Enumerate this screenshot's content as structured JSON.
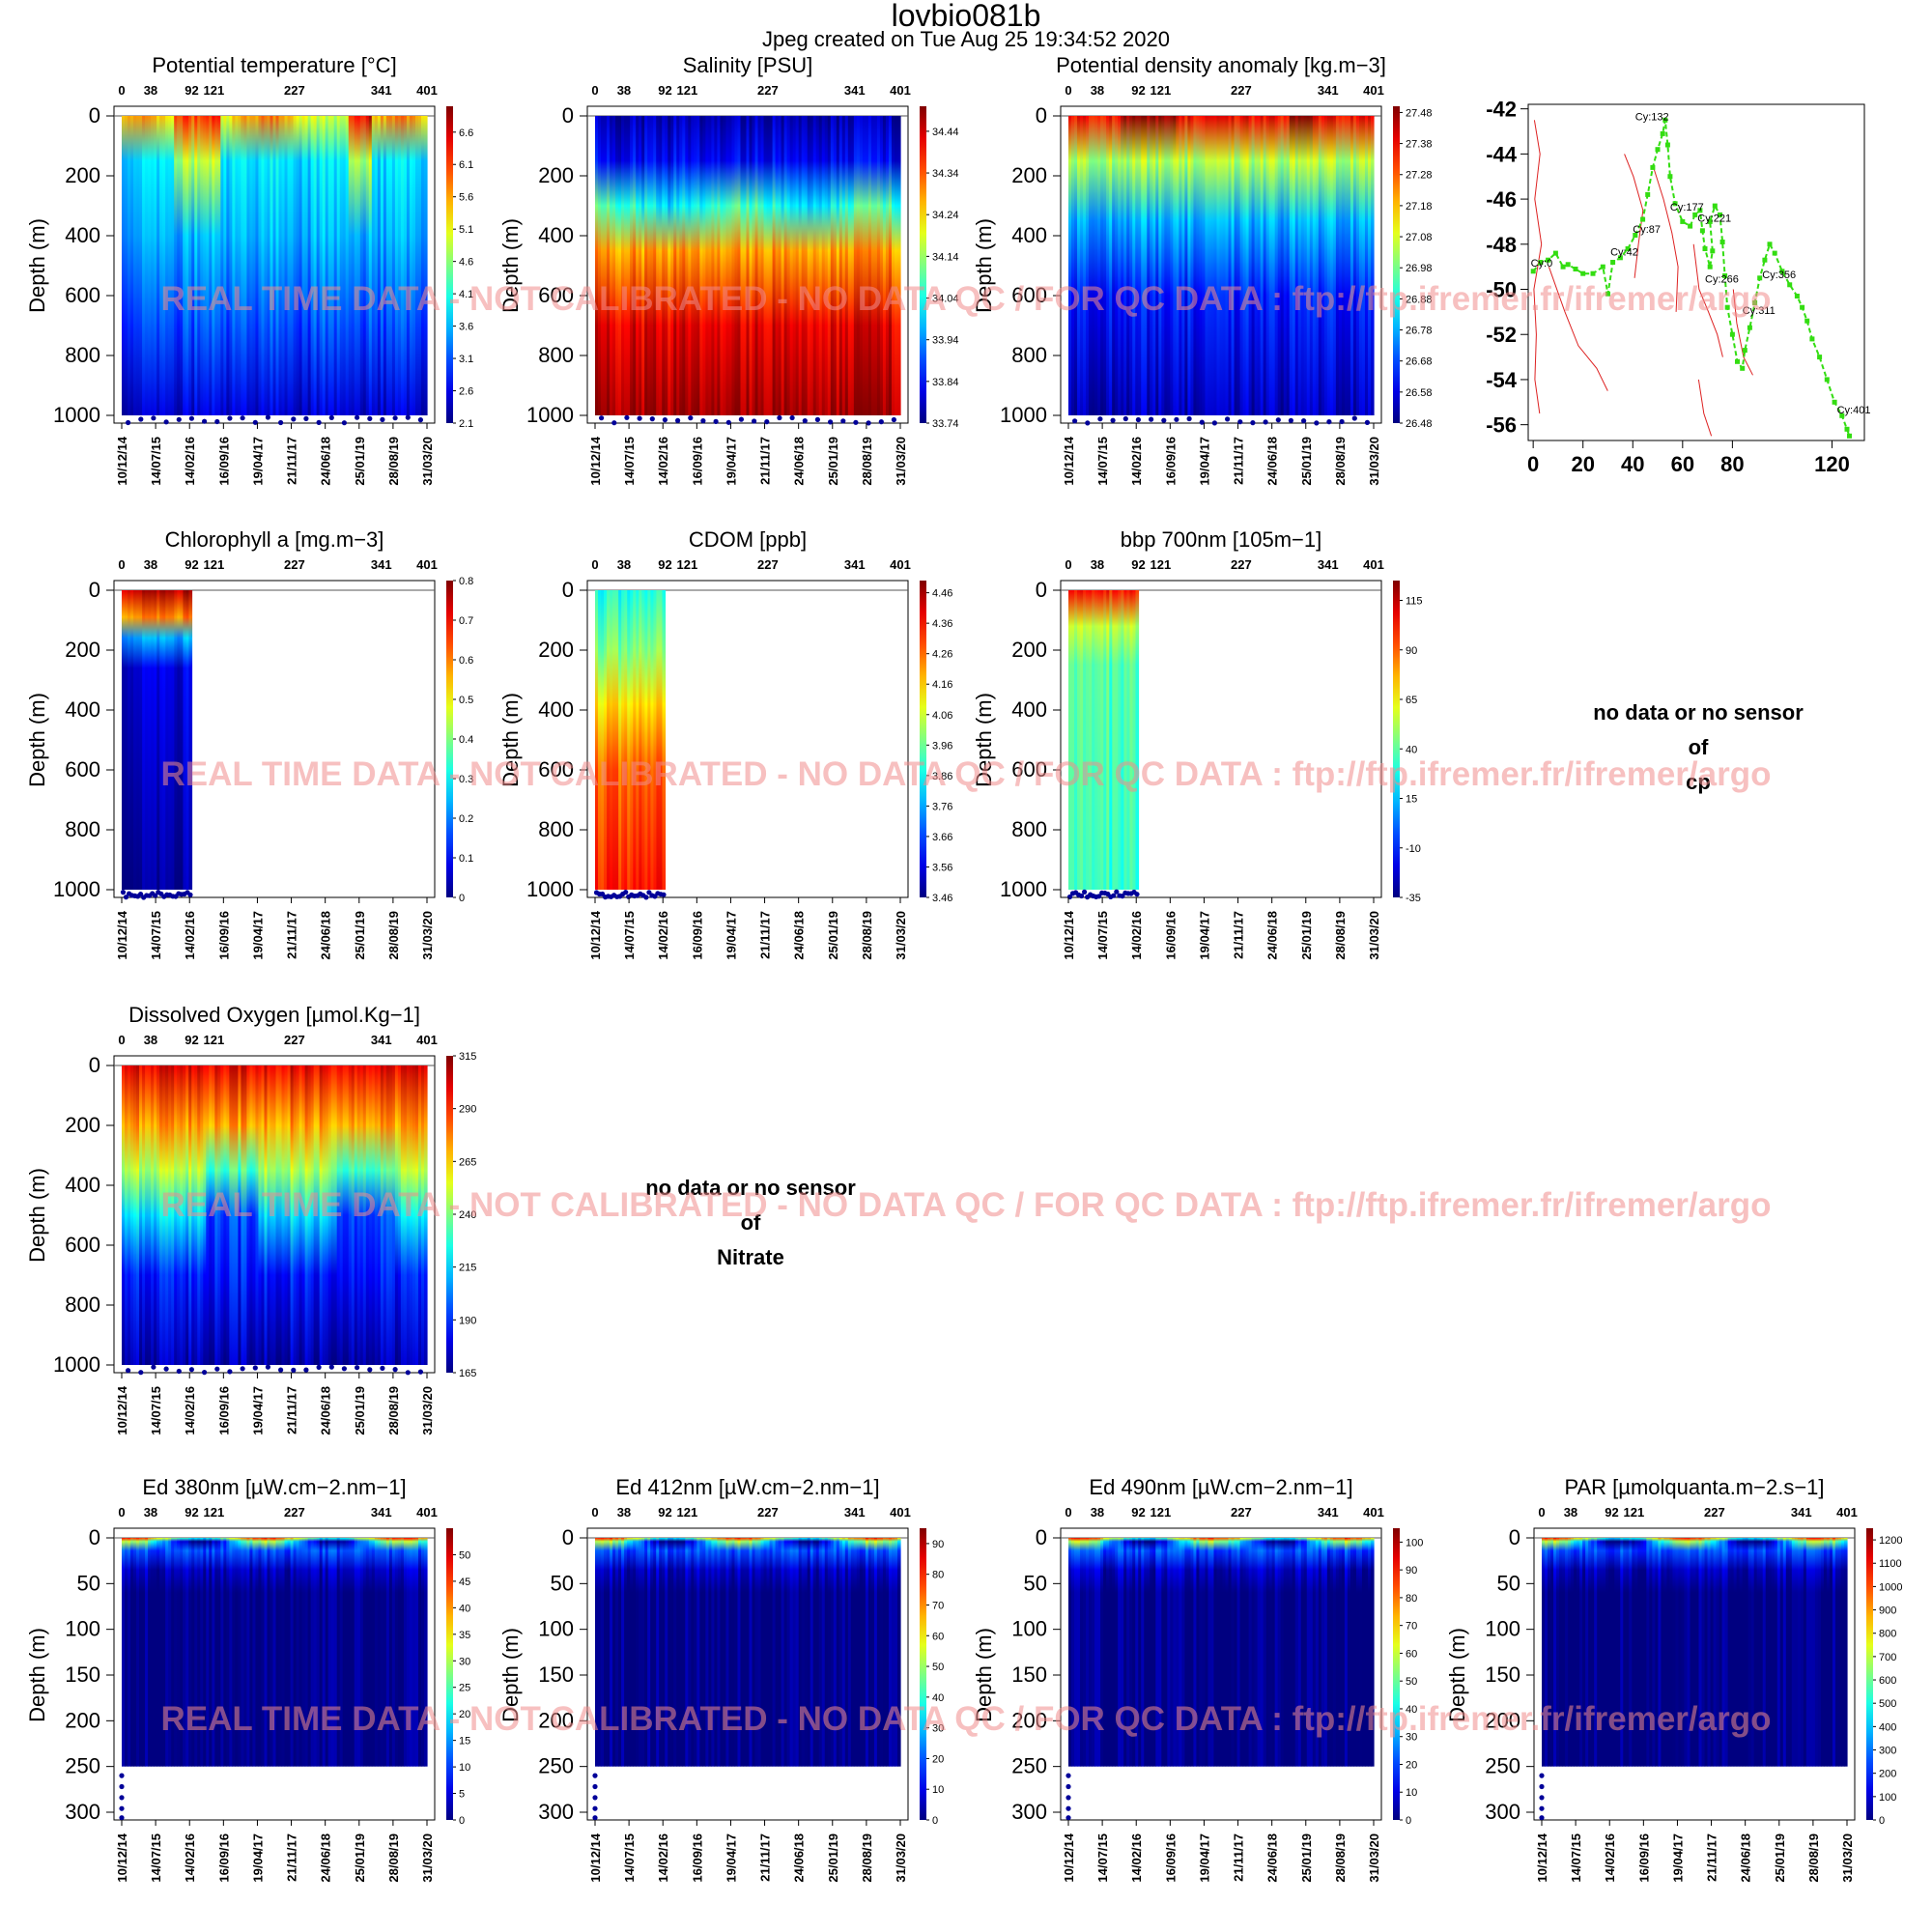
{
  "title": "lovbio081b",
  "subtitle": "Jpeg created on  Tue Aug 25 19:34:52 2020",
  "watermark": "REAL TIME DATA - NOT CALIBRATED - NO DATA QC   /  FOR QC DATA : ftp://ftp.ifremer.fr/ifremer/argo",
  "colors": {
    "colormap": "jet",
    "map_track": "#33dd11",
    "map_contour": "#dd2222",
    "profile_bottom_dot": "#000099"
  },
  "no_data": {
    "cp": [
      "no data or no sensor",
      "of",
      "cp"
    ],
    "nitrate": [
      "no data or no sensor",
      "of",
      "Nitrate"
    ]
  },
  "shared_axes": {
    "cycle_ticks": [
      0,
      38,
      92,
      121,
      227,
      341,
      401
    ],
    "date_ticks": [
      "10/12/14",
      "14/07/15",
      "14/02/16",
      "16/09/16",
      "19/04/17",
      "21/11/17",
      "24/06/18",
      "25/01/19",
      "28/08/19",
      "31/03/20"
    ],
    "ylabel": "Depth (m)"
  },
  "chart_data": [
    {
      "id": "temp",
      "type": "heatmap",
      "title": "Potential temperature [°C]",
      "ylabel": "Depth (m)",
      "ylim": [
        1000,
        0
      ],
      "yticks": [
        0,
        200,
        400,
        600,
        800,
        1000
      ],
      "cycle_coverage": [
        0,
        401
      ],
      "colorbar": {
        "min": 2.1,
        "max": 7.0,
        "ticks": [
          "6.6",
          "6.1",
          "5.6",
          "5.1",
          "4.6",
          "4.1",
          "3.6",
          "3.1",
          "2.6",
          "2.1"
        ]
      }
    },
    {
      "id": "sal",
      "type": "heatmap",
      "title": "Salinity [PSU]",
      "ylabel": "Depth (m)",
      "ylim": [
        1000,
        0
      ],
      "yticks": [
        0,
        200,
        400,
        600,
        800,
        1000
      ],
      "cycle_coverage": [
        0,
        401
      ],
      "colorbar": {
        "min": 33.74,
        "max": 34.5,
        "ticks": [
          "34.44",
          "34.34",
          "34.24",
          "34.14",
          "34.04",
          "33.94",
          "33.84",
          "33.74"
        ]
      }
    },
    {
      "id": "dens",
      "type": "heatmap",
      "title": "Potential density anomaly [kg.m−3]",
      "ylabel": "Depth (m)",
      "ylim": [
        1000,
        0
      ],
      "yticks": [
        0,
        200,
        400,
        600,
        800,
        1000
      ],
      "cycle_coverage": [
        0,
        401
      ],
      "colorbar": {
        "min": 26.48,
        "max": 27.5,
        "ticks": [
          "27.48",
          "27.38",
          "27.28",
          "27.18",
          "27.08",
          "26.98",
          "26.88",
          "26.78",
          "26.68",
          "26.58",
          "26.48"
        ]
      }
    },
    {
      "id": "map",
      "type": "scatter",
      "title": "",
      "xlim": [
        -2,
        133
      ],
      "ylim": [
        -56.7,
        -41.8
      ],
      "xticks": [
        0,
        20,
        40,
        60,
        80,
        120
      ],
      "yticks": [
        -42,
        -44,
        -46,
        -48,
        -50,
        -52,
        -54,
        -56
      ],
      "track_labels": [
        {
          "label": "Cy:0",
          "x": -1,
          "y": -49.0
        },
        {
          "label": "Cy:42",
          "x": 31,
          "y": -48.5
        },
        {
          "label": "Cy:87",
          "x": 40,
          "y": -47.5
        },
        {
          "label": "Cy:132",
          "x": 41,
          "y": -42.5
        },
        {
          "label": "Cy:177",
          "x": 55,
          "y": -46.5
        },
        {
          "label": "Cy:221",
          "x": 66,
          "y": -47.0
        },
        {
          "label": "Cy:266",
          "x": 69,
          "y": -49.7
        },
        {
          "label": "Cy:311",
          "x": 84,
          "y": -51.1
        },
        {
          "label": "Cy:356",
          "x": 92,
          "y": -49.5
        },
        {
          "label": "Cy:401",
          "x": 122,
          "y": -55.5
        }
      ],
      "track": [
        [
          0,
          -49.2
        ],
        [
          3,
          -48.8
        ],
        [
          6,
          -48.7
        ],
        [
          9,
          -48.4
        ],
        [
          12,
          -49.0
        ],
        [
          14,
          -48.9
        ],
        [
          17,
          -49.1
        ],
        [
          20,
          -49.3
        ],
        [
          24,
          -49.3
        ],
        [
          28,
          -49.0
        ],
        [
          30,
          -50.2
        ],
        [
          32,
          -48.8
        ],
        [
          35,
          -48.6
        ],
        [
          38,
          -48.2
        ],
        [
          41,
          -47.6
        ],
        [
          44,
          -46.9
        ],
        [
          46,
          -45.8
        ],
        [
          48,
          -44.6
        ],
        [
          50,
          -43.8
        ],
        [
          52,
          -43.1
        ],
        [
          53,
          -42.5
        ],
        [
          54,
          -43.6
        ],
        [
          55,
          -45.0
        ],
        [
          57,
          -46.2
        ],
        [
          60,
          -47.0
        ],
        [
          63,
          -47.2
        ],
        [
          65,
          -46.7
        ],
        [
          67,
          -46.5
        ],
        [
          68,
          -47.4
        ],
        [
          69,
          -48.2
        ],
        [
          71,
          -49.0
        ],
        [
          72,
          -48.3
        ],
        [
          71,
          -47.0
        ],
        [
          73,
          -46.3
        ],
        [
          75,
          -46.7
        ],
        [
          76,
          -47.9
        ],
        [
          77,
          -49.4
        ],
        [
          78,
          -50.8
        ],
        [
          80,
          -52.0
        ],
        [
          82,
          -53.2
        ],
        [
          84,
          -53.5
        ],
        [
          85,
          -52.7
        ],
        [
          87,
          -51.7
        ],
        [
          89,
          -50.6
        ],
        [
          91,
          -49.5
        ],
        [
          93,
          -48.7
        ],
        [
          95,
          -48.0
        ],
        [
          97,
          -48.4
        ],
        [
          100,
          -49.2
        ],
        [
          103,
          -49.8
        ],
        [
          106,
          -50.3
        ],
        [
          108,
          -50.8
        ],
        [
          110,
          -51.4
        ],
        [
          112,
          -52.2
        ],
        [
          115,
          -53.0
        ],
        [
          118,
          -54.0
        ],
        [
          121,
          -55.0
        ],
        [
          124,
          -55.6
        ],
        [
          126,
          -56.2
        ],
        [
          127,
          -56.5
        ]
      ]
    },
    {
      "id": "chla",
      "type": "heatmap",
      "title": "Chlorophyll a [mg.m−3]",
      "ylabel": "Depth (m)",
      "ylim": [
        1000,
        0
      ],
      "yticks": [
        0,
        200,
        400,
        600,
        800,
        1000
      ],
      "cycle_coverage": [
        0,
        92
      ],
      "colorbar": {
        "min": 0,
        "max": 0.8,
        "ticks": [
          "0.8",
          "0.7",
          "0.6",
          "0.5",
          "0.4",
          "0.3",
          "0.2",
          "0.1",
          "0"
        ]
      }
    },
    {
      "id": "cdom",
      "type": "heatmap",
      "title": "CDOM  [ppb]",
      "ylabel": "Depth (m)",
      "ylim": [
        1000,
        0
      ],
      "yticks": [
        0,
        200,
        400,
        600,
        800,
        1000
      ],
      "cycle_coverage": [
        0,
        92
      ],
      "colorbar": {
        "min": 3.46,
        "max": 4.5,
        "ticks": [
          "4.46",
          "4.36",
          "4.26",
          "4.16",
          "4.06",
          "3.96",
          "3.86",
          "3.76",
          "3.66",
          "3.56",
          "3.46"
        ]
      }
    },
    {
      "id": "bbp",
      "type": "heatmap",
      "title": "bbp 700nm [105m−1]",
      "ylabel": "Depth (m)",
      "ylim": [
        1000,
        0
      ],
      "yticks": [
        0,
        200,
        400,
        600,
        800,
        1000
      ],
      "cycle_coverage": [
        0,
        92
      ],
      "colorbar": {
        "min": -35,
        "max": 125,
        "ticks": [
          "115",
          "90",
          "65",
          "40",
          "15",
          "-10",
          "-35"
        ]
      }
    },
    {
      "id": "oxy",
      "type": "heatmap",
      "title": "Dissolved Oxygen [µmol.Kg−1]",
      "ylabel": "Depth (m)",
      "ylim": [
        1000,
        0
      ],
      "yticks": [
        0,
        200,
        400,
        600,
        800,
        1000
      ],
      "cycle_coverage": [
        0,
        401
      ],
      "colorbar": {
        "min": 165,
        "max": 315,
        "ticks": [
          "315",
          "290",
          "265",
          "240",
          "215",
          "190",
          "165"
        ]
      }
    },
    {
      "id": "ed380",
      "type": "heatmap",
      "title": "Ed 380nm [µW.cm−2.nm−1]",
      "ylabel": "Depth (m)",
      "ylim": [
        300,
        0
      ],
      "yticks": [
        0,
        50,
        100,
        150,
        200,
        250,
        300
      ],
      "cycle_coverage": [
        0,
        401
      ],
      "colorbar": {
        "min": 0,
        "max": 55,
        "ticks": [
          "50",
          "45",
          "40",
          "35",
          "30",
          "25",
          "20",
          "15",
          "10",
          "5",
          "0"
        ]
      }
    },
    {
      "id": "ed412",
      "type": "heatmap",
      "title": "Ed 412nm [µW.cm−2.nm−1]",
      "ylabel": "Depth (m)",
      "ylim": [
        300,
        0
      ],
      "yticks": [
        0,
        50,
        100,
        150,
        200,
        250,
        300
      ],
      "cycle_coverage": [
        0,
        401
      ],
      "colorbar": {
        "min": 0,
        "max": 95,
        "ticks": [
          "90",
          "80",
          "70",
          "60",
          "50",
          "40",
          "30",
          "20",
          "10",
          "0"
        ]
      }
    },
    {
      "id": "ed490",
      "type": "heatmap",
      "title": "Ed 490nm [µW.cm−2.nm−1]",
      "ylabel": "Depth (m)",
      "ylim": [
        300,
        0
      ],
      "yticks": [
        0,
        50,
        100,
        150,
        200,
        250,
        300
      ],
      "cycle_coverage": [
        0,
        401
      ],
      "colorbar": {
        "min": 0,
        "max": 105,
        "ticks": [
          "100",
          "90",
          "80",
          "70",
          "60",
          "50",
          "40",
          "30",
          "20",
          "10",
          "0"
        ]
      }
    },
    {
      "id": "par",
      "type": "heatmap",
      "title": "PAR [µmolquanta.m−2.s−1]",
      "ylabel": "Depth (m)",
      "ylim": [
        300,
        0
      ],
      "yticks": [
        0,
        50,
        100,
        150,
        200,
        250,
        300
      ],
      "cycle_coverage": [
        0,
        401
      ],
      "colorbar": {
        "min": 0,
        "max": 1250,
        "ticks": [
          "1200",
          "1100",
          "1000",
          "900",
          "800",
          "700",
          "600",
          "500",
          "400",
          "300",
          "200",
          "100",
          "0"
        ]
      }
    }
  ]
}
